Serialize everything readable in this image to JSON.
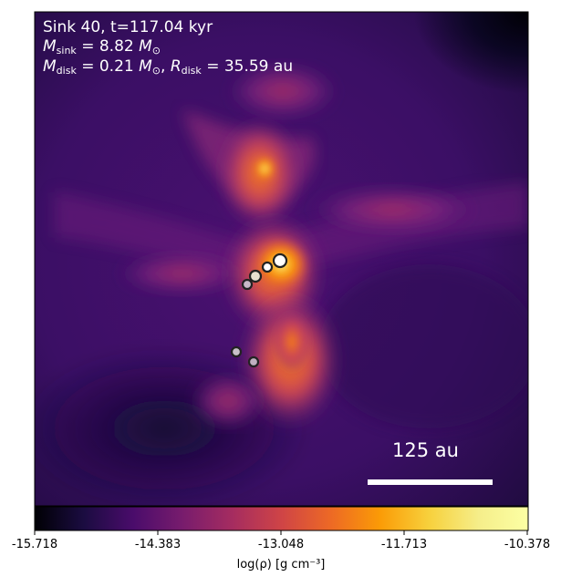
{
  "panel": {
    "title": "Sink 40, t=117.04 kyr",
    "sink_mass": {
      "symbol": "M",
      "sub": "sink",
      "value": "= 8.82",
      "unit": "M",
      "unit_sub": "⊙"
    },
    "disk_mass": {
      "symbol": "M",
      "sub": "disk",
      "value": "= 0.21",
      "unit": "M",
      "unit_sub": "⊙"
    },
    "disk_radius": {
      "symbol": "R",
      "sub": "disk",
      "value": "= 35.59",
      "unit": "au"
    },
    "scale_bar_label": "125 au"
  },
  "colorbar": {
    "ticks": [
      "-15.718",
      "-14.383",
      "-13.048",
      "-11.713",
      "-10.378"
    ],
    "label": "log(ρ) [g cm⁻³]",
    "colormap": "inferno"
  },
  "colors": {
    "dark": "#0d0829",
    "purple": "#3a0f62",
    "magenta": "#822681",
    "red": "#cc4454",
    "orange": "#f57d15",
    "yellow": "#fbb81b",
    "light": "#fcfea4"
  },
  "sinks": [
    {
      "name": "sink-1",
      "fill": "#ffffff"
    },
    {
      "name": "sink-2",
      "fill": "#e8e0d0"
    },
    {
      "name": "sink-3",
      "fill": "#ffffff"
    },
    {
      "name": "sink-4",
      "fill": "#c8b8c8"
    },
    {
      "name": "sink-5",
      "fill": "#c8c0c8"
    },
    {
      "name": "sink-6",
      "fill": "#c0b0c0"
    }
  ]
}
